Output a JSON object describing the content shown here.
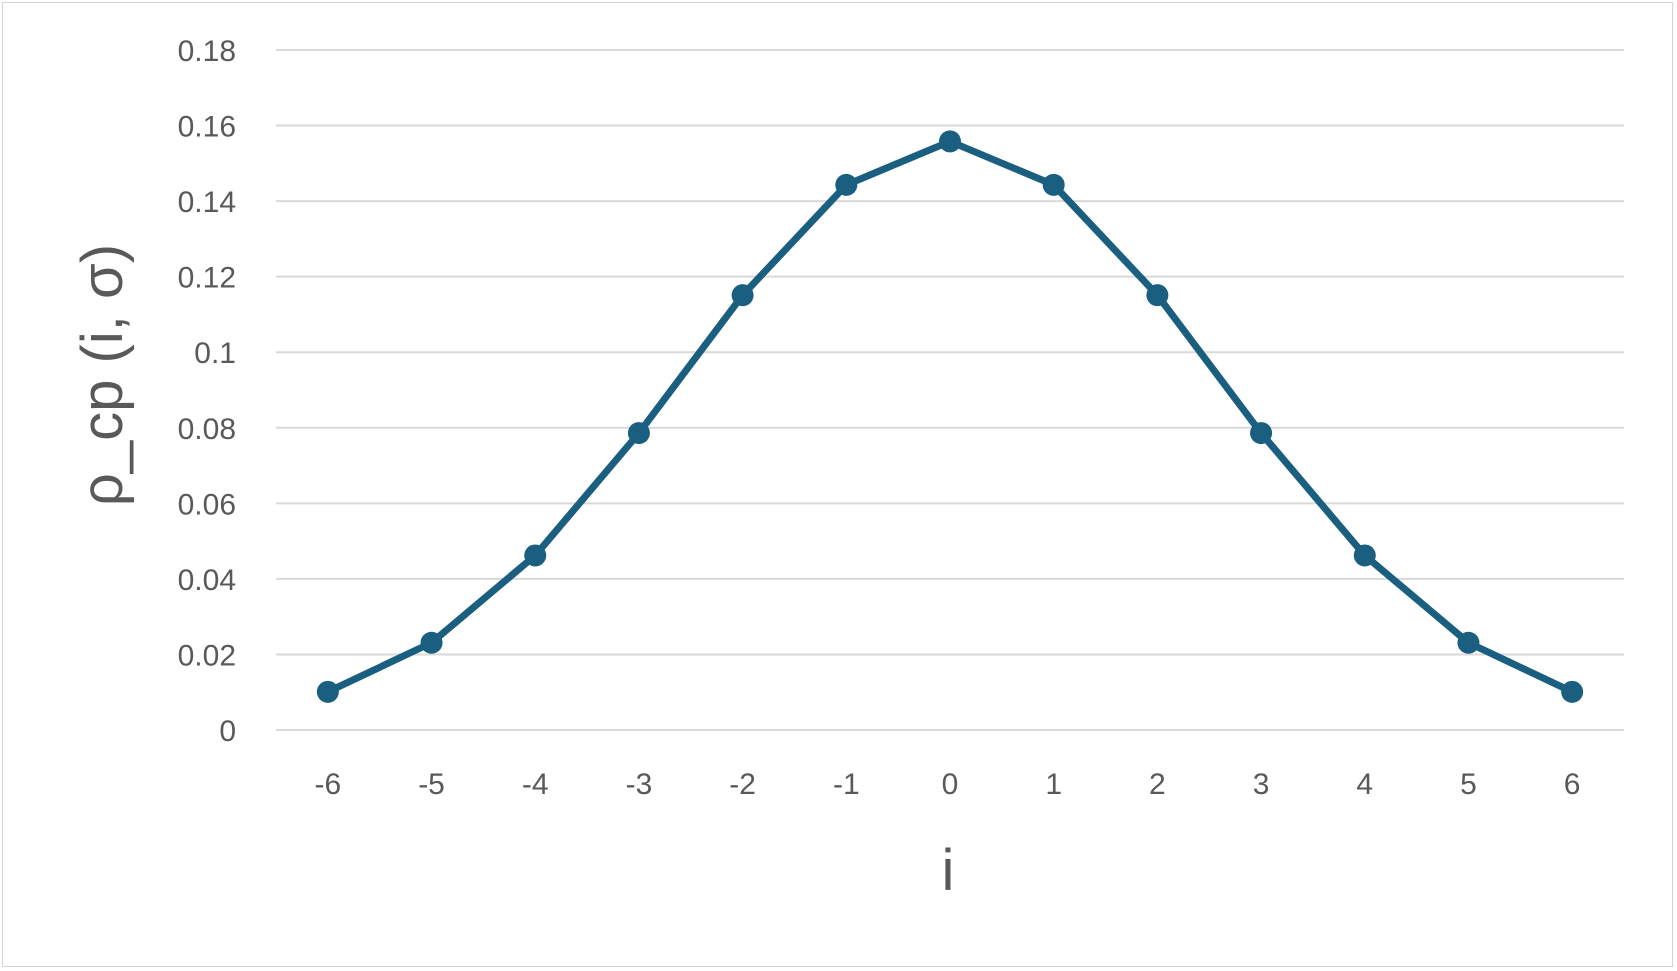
{
  "chart_data": {
    "type": "line",
    "title": "",
    "xlabel": "i",
    "ylabel": "ρ_cp (i, σ)",
    "x": [
      -6,
      -5,
      -4,
      -3,
      -2,
      -1,
      0,
      1,
      2,
      3,
      4,
      5,
      6
    ],
    "series": [
      {
        "values": [
          0.0101,
          0.0231,
          0.0462,
          0.0786,
          0.1151,
          0.1443,
          0.1558,
          0.1443,
          0.1151,
          0.0786,
          0.0462,
          0.0231,
          0.0101
        ]
      }
    ],
    "ylim": [
      0,
      0.18
    ],
    "yticks": [
      "0",
      "0.02",
      "0.04",
      "0.06",
      "0.08",
      "0.1",
      "0.12",
      "0.14",
      "0.16",
      "0.18"
    ],
    "xticks": [
      "-6",
      "-5",
      "-4",
      "-3",
      "-2",
      "-1",
      "0",
      "1",
      "2",
      "3",
      "4",
      "5",
      "6"
    ],
    "grid": true,
    "legend": "none",
    "colors": {
      "line": "#1a5e80",
      "grid": "#d9d9d9",
      "text": "#595959"
    }
  }
}
